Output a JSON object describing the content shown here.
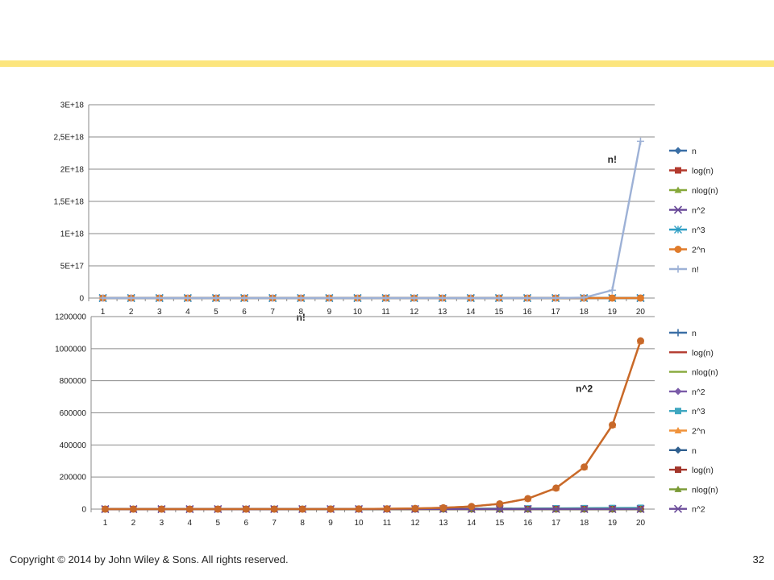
{
  "slide": {
    "accent_color": "#FCE57D",
    "footer": "Copyright © 2014 by John Wiley & Sons.  All rights reserved.",
    "page_number": "32"
  },
  "chart_data": [
    {
      "type": "line",
      "categories": [
        "1",
        "2",
        "3",
        "4",
        "5",
        "6",
        "7",
        "8",
        "9",
        "10",
        "11",
        "12",
        "13",
        "14",
        "15",
        "16",
        "17",
        "18",
        "19",
        "20"
      ],
      "ylim": [
        0,
        3e+18
      ],
      "yticks": [
        "0",
        "5E+17",
        "1E+18",
        "1,5E+18",
        "2E+18",
        "2,5E+18",
        "3E+18"
      ],
      "grid": true,
      "legend": "right",
      "annotations": [
        {
          "text": "n!",
          "x": 19,
          "y": 2.1e+18
        },
        {
          "text": "n!",
          "x": 8,
          "y": -2.8e+17
        }
      ],
      "series": [
        {
          "name": "n",
          "color": "#3A6EA5",
          "marker": "diamond",
          "values": [
            1,
            2,
            3,
            4,
            5,
            6,
            7,
            8,
            9,
            10,
            11,
            12,
            13,
            14,
            15,
            16,
            17,
            18,
            19,
            20
          ]
        },
        {
          "name": "log(n)",
          "color": "#B33A2E",
          "marker": "square",
          "values": [
            0,
            0.69,
            1.1,
            1.39,
            1.61,
            1.79,
            1.95,
            2.08,
            2.2,
            2.3,
            2.4,
            2.48,
            2.56,
            2.64,
            2.71,
            2.77,
            2.83,
            2.89,
            2.94,
            3.0
          ]
        },
        {
          "name": "nlog(n)",
          "color": "#86A83A",
          "marker": "triangle",
          "values": [
            0,
            1.39,
            3.3,
            5.55,
            8.05,
            10.75,
            13.62,
            16.64,
            19.78,
            23.03,
            26.38,
            29.82,
            33.34,
            36.95,
            40.62,
            44.36,
            48.16,
            52.03,
            55.94,
            59.91
          ]
        },
        {
          "name": "n^2",
          "color": "#6B4C9A",
          "marker": "x",
          "values": [
            1,
            4,
            9,
            16,
            25,
            36,
            49,
            64,
            81,
            100,
            121,
            144,
            169,
            196,
            225,
            256,
            289,
            324,
            361,
            400
          ]
        },
        {
          "name": "n^3",
          "color": "#2E9EC4",
          "marker": "asterisk",
          "values": [
            1,
            8,
            27,
            64,
            125,
            216,
            343,
            512,
            729,
            1000,
            1331,
            1728,
            2197,
            2744,
            3375,
            4096,
            4913,
            5832,
            6859,
            8000
          ]
        },
        {
          "name": "2^n",
          "color": "#E07B2A",
          "marker": "circle",
          "values": [
            2,
            4,
            8,
            16,
            32,
            64,
            128,
            256,
            512,
            1024,
            2048,
            4096,
            8192,
            16384,
            32768,
            65536,
            131072,
            262144,
            524288,
            1048576
          ]
        },
        {
          "name": "n!",
          "color": "#9DB1D6",
          "marker": "plus",
          "values": [
            1,
            2,
            6,
            24,
            120,
            720,
            5040,
            40320,
            362880,
            3628800,
            39916800,
            479001600,
            6227020800,
            87178291200,
            1307674368000,
            20922789888000,
            355687428096000,
            6402373705728000,
            121645100408832000,
            2432902008176640000
          ]
        }
      ]
    },
    {
      "type": "line",
      "categories": [
        "1",
        "2",
        "3",
        "4",
        "5",
        "6",
        "7",
        "8",
        "9",
        "10",
        "11",
        "12",
        "13",
        "14",
        "15",
        "16",
        "17",
        "18",
        "19",
        "20"
      ],
      "ylim": [
        0,
        1200000
      ],
      "yticks": [
        "0",
        "200000",
        "400000",
        "600000",
        "800000",
        "1000000",
        "1200000"
      ],
      "grid": true,
      "legend": "right",
      "annotations": [
        {
          "text": "n^2",
          "x": 18,
          "y": 730000
        }
      ],
      "series": [
        {
          "name": "n",
          "color": "#3A6EA5",
          "marker": "plus",
          "values": [
            1,
            2,
            3,
            4,
            5,
            6,
            7,
            8,
            9,
            10,
            11,
            12,
            13,
            14,
            15,
            16,
            17,
            18,
            19,
            20
          ]
        },
        {
          "name": "log(n)",
          "color": "#B33A2E",
          "marker": "none",
          "values": [
            0,
            0.69,
            1.1,
            1.39,
            1.61,
            1.79,
            1.95,
            2.08,
            2.2,
            2.3,
            2.4,
            2.48,
            2.56,
            2.64,
            2.71,
            2.77,
            2.83,
            2.89,
            2.94,
            3.0
          ]
        },
        {
          "name": "nlog(n)",
          "color": "#86A83A",
          "marker": "none",
          "values": [
            0,
            1.39,
            3.3,
            5.55,
            8.05,
            10.75,
            13.62,
            16.64,
            19.78,
            23.03,
            26.38,
            29.82,
            33.34,
            36.95,
            40.62,
            44.36,
            48.16,
            52.03,
            55.94,
            59.91
          ]
        },
        {
          "name": "n^2",
          "color": "#7A5BA8",
          "marker": "diamond",
          "values": [
            1,
            4,
            9,
            16,
            25,
            36,
            49,
            64,
            81,
            100,
            121,
            144,
            169,
            196,
            225,
            256,
            289,
            324,
            361,
            400
          ]
        },
        {
          "name": "n^3",
          "color": "#3FA7C0",
          "marker": "square",
          "values": [
            1,
            8,
            27,
            64,
            125,
            216,
            343,
            512,
            729,
            1000,
            1331,
            1728,
            2197,
            2744,
            3375,
            4096,
            4913,
            5832,
            6859,
            8000
          ]
        },
        {
          "name": "2^n",
          "color": "#F0923A",
          "marker": "triangle",
          "values": [
            2,
            4,
            8,
            16,
            32,
            64,
            128,
            256,
            512,
            1024,
            2048,
            4096,
            8192,
            16384,
            32768,
            65536,
            131072,
            262144,
            524288,
            1048576
          ]
        },
        {
          "name": "n",
          "color": "#2F5F8F",
          "marker": "diamond",
          "values": [
            1,
            2,
            3,
            4,
            5,
            6,
            7,
            8,
            9,
            10,
            11,
            12,
            13,
            14,
            15,
            16,
            17,
            18,
            19,
            20
          ]
        },
        {
          "name": "log(n)",
          "color": "#A3362B",
          "marker": "square",
          "values": [
            0,
            0.69,
            1.1,
            1.39,
            1.61,
            1.79,
            1.95,
            2.08,
            2.2,
            2.3,
            2.4,
            2.48,
            2.56,
            2.64,
            2.71,
            2.77,
            2.83,
            2.89,
            2.94,
            3.0
          ]
        },
        {
          "name": "nlog(n)",
          "color": "#7A9A35",
          "marker": "triangle",
          "values": [
            0,
            1.39,
            3.3,
            5.55,
            8.05,
            10.75,
            13.62,
            16.64,
            19.78,
            23.03,
            26.38,
            29.82,
            33.34,
            36.95,
            40.62,
            44.36,
            48.16,
            52.03,
            55.94,
            59.91
          ]
        },
        {
          "name": "n^2",
          "color": "#6B4C9A",
          "marker": "x",
          "values": [
            1,
            4,
            9,
            16,
            25,
            36,
            49,
            64,
            81,
            100,
            121,
            144,
            169,
            196,
            225,
            256,
            289,
            324,
            361,
            400
          ]
        },
        {
          "name": "2^n",
          "color": "#C8692A",
          "marker": "circle",
          "legend": false,
          "values": [
            2,
            4,
            8,
            16,
            32,
            64,
            128,
            256,
            512,
            1024,
            2048,
            4096,
            8192,
            16384,
            32768,
            65536,
            131072,
            262144,
            524288,
            1048576
          ]
        }
      ]
    }
  ]
}
